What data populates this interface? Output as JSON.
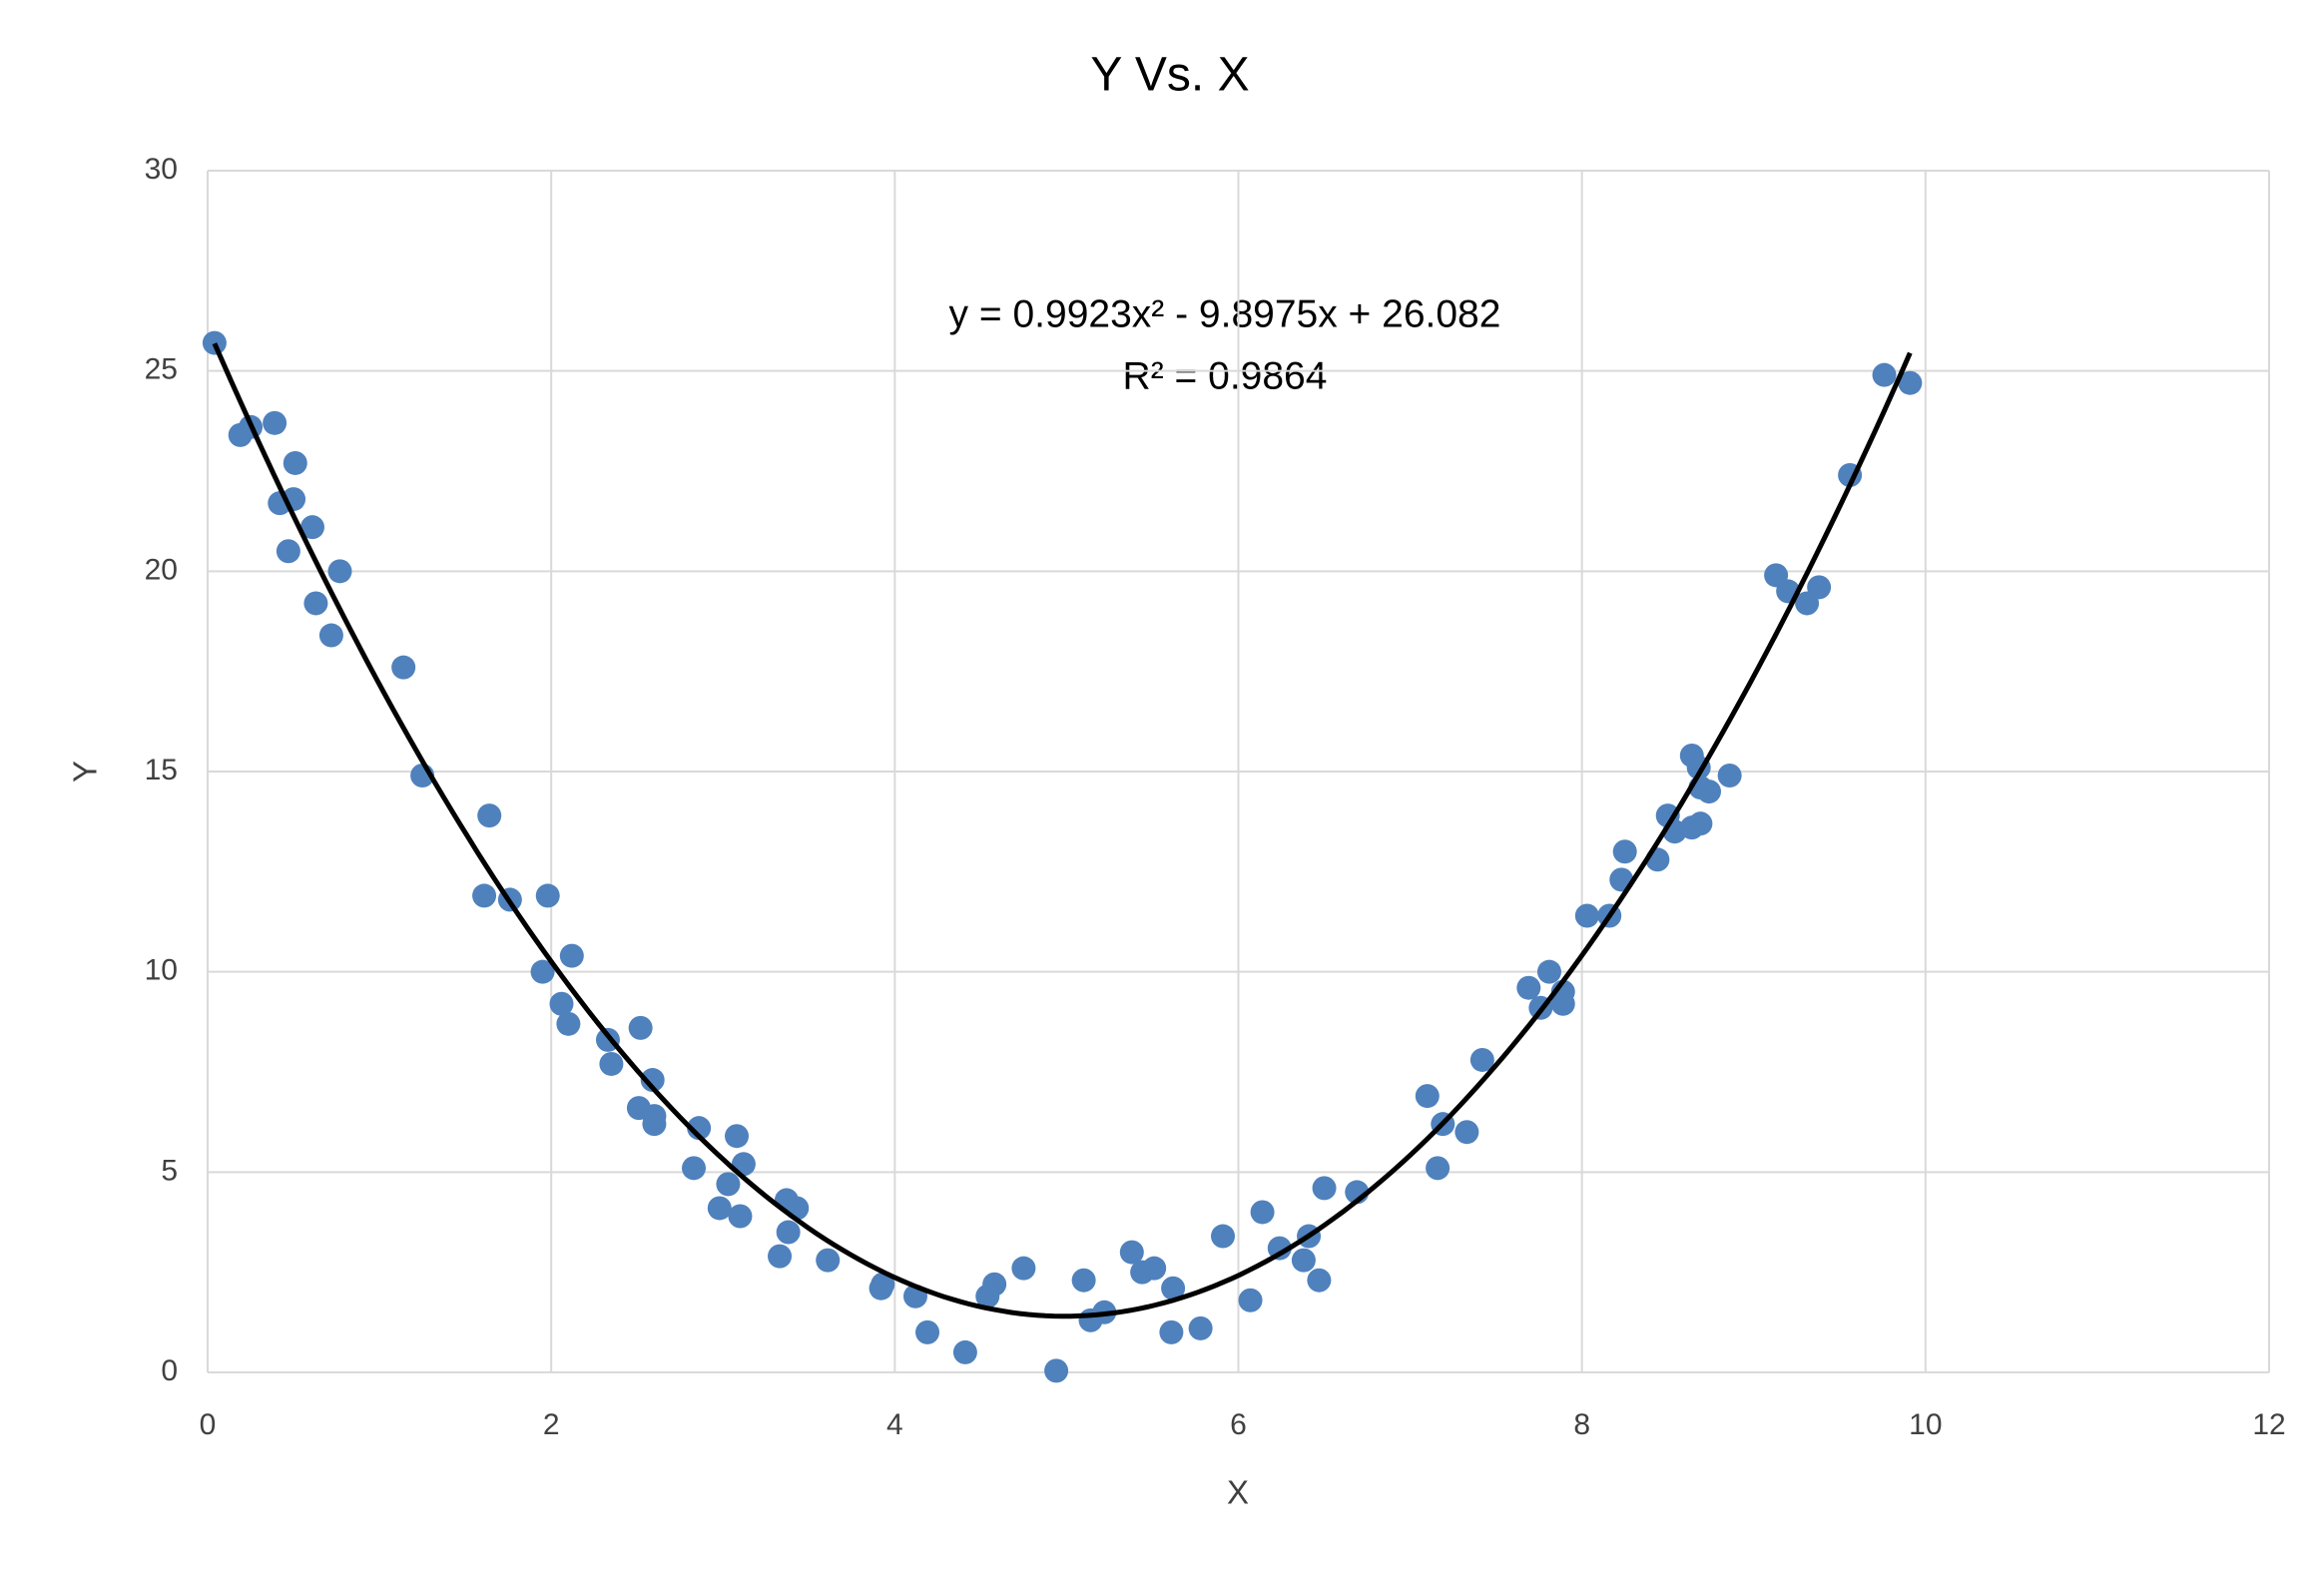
{
  "chart_data": {
    "type": "scatter",
    "title": "Y Vs. X",
    "x_label": "X",
    "y_label": "Y",
    "x": [
      0.04,
      0.19,
      0.25,
      0.39,
      0.51,
      0.42,
      0.5,
      0.61,
      0.47,
      0.77,
      0.63,
      0.72,
      1.14,
      1.25,
      1.64,
      1.61,
      1.76,
      1.98,
      2.12,
      1.95,
      2.06,
      2.1,
      2.52,
      2.33,
      2.35,
      2.59,
      2.51,
      2.6,
      2.6,
      2.86,
      3.08,
      3.12,
      2.83,
      3.03,
      2.98,
      3.1,
      3.37,
      3.43,
      3.38,
      3.33,
      3.61,
      3.93,
      3.92,
      4.12,
      4.19,
      4.41,
      4.54,
      4.58,
      4.75,
      4.94,
      5.1,
      5.14,
      5.22,
      5.38,
      5.44,
      5.51,
      5.62,
      5.61,
      5.78,
      5.91,
      6.07,
      6.14,
      6.24,
      6.38,
      6.41,
      6.47,
      6.5,
      6.69,
      7.1,
      7.19,
      7.16,
      7.33,
      7.42,
      7.69,
      7.76,
      7.81,
      7.89,
      7.89,
      8.03,
      8.16,
      8.23,
      8.25,
      8.44,
      8.5,
      8.54,
      8.64,
      8.68,
      8.64,
      8.69,
      8.69,
      8.74,
      8.86,
      9.13,
      9.2,
      9.31,
      9.38,
      9.56,
      9.76,
      9.91
    ],
    "values": [
      25.7,
      23.4,
      23.6,
      23.7,
      22.7,
      21.7,
      21.8,
      21.1,
      20.5,
      20.0,
      19.2,
      18.4,
      17.6,
      14.9,
      13.9,
      11.9,
      11.8,
      11.9,
      10.4,
      10.0,
      9.2,
      8.7,
      8.6,
      8.3,
      7.7,
      7.3,
      6.6,
      6.4,
      6.2,
      6.1,
      5.9,
      5.2,
      5.1,
      4.7,
      4.1,
      3.9,
      4.3,
      4.1,
      3.5,
      2.9,
      2.8,
      2.2,
      2.1,
      1.9,
      1.0,
      0.5,
      1.9,
      2.2,
      2.6,
      0.04,
      2.3,
      1.3,
      1.5,
      3.0,
      2.5,
      2.6,
      2.1,
      1.0,
      1.1,
      3.4,
      1.8,
      4.0,
      3.1,
      2.8,
      3.4,
      2.3,
      4.6,
      4.5,
      6.9,
      6.2,
      5.1,
      6.0,
      7.8,
      9.6,
      9.1,
      10.0,
      9.5,
      9.2,
      11.4,
      11.4,
      12.3,
      13.0,
      12.8,
      13.9,
      13.5,
      15.4,
      15.1,
      13.6,
      13.7,
      14.6,
      14.5,
      14.9,
      19.9,
      19.5,
      19.2,
      19.6,
      22.4,
      24.9,
      24.7
    ],
    "color": "#4f81bd",
    "trendline": {
      "equation": "y = 0.9923x² - 9.8975x + 26.082",
      "r_squared": "R² = 0.9864",
      "coefficients": [
        0.9923,
        -9.8975,
        26.082
      ],
      "color": "#000000"
    },
    "xlim": [
      0,
      12
    ],
    "xticks": [
      0,
      2,
      4,
      6,
      8,
      10,
      12
    ],
    "ylim": [
      0,
      30
    ],
    "yticks": [
      0,
      5,
      10,
      15,
      20,
      25,
      30
    ],
    "grid": true
  }
}
